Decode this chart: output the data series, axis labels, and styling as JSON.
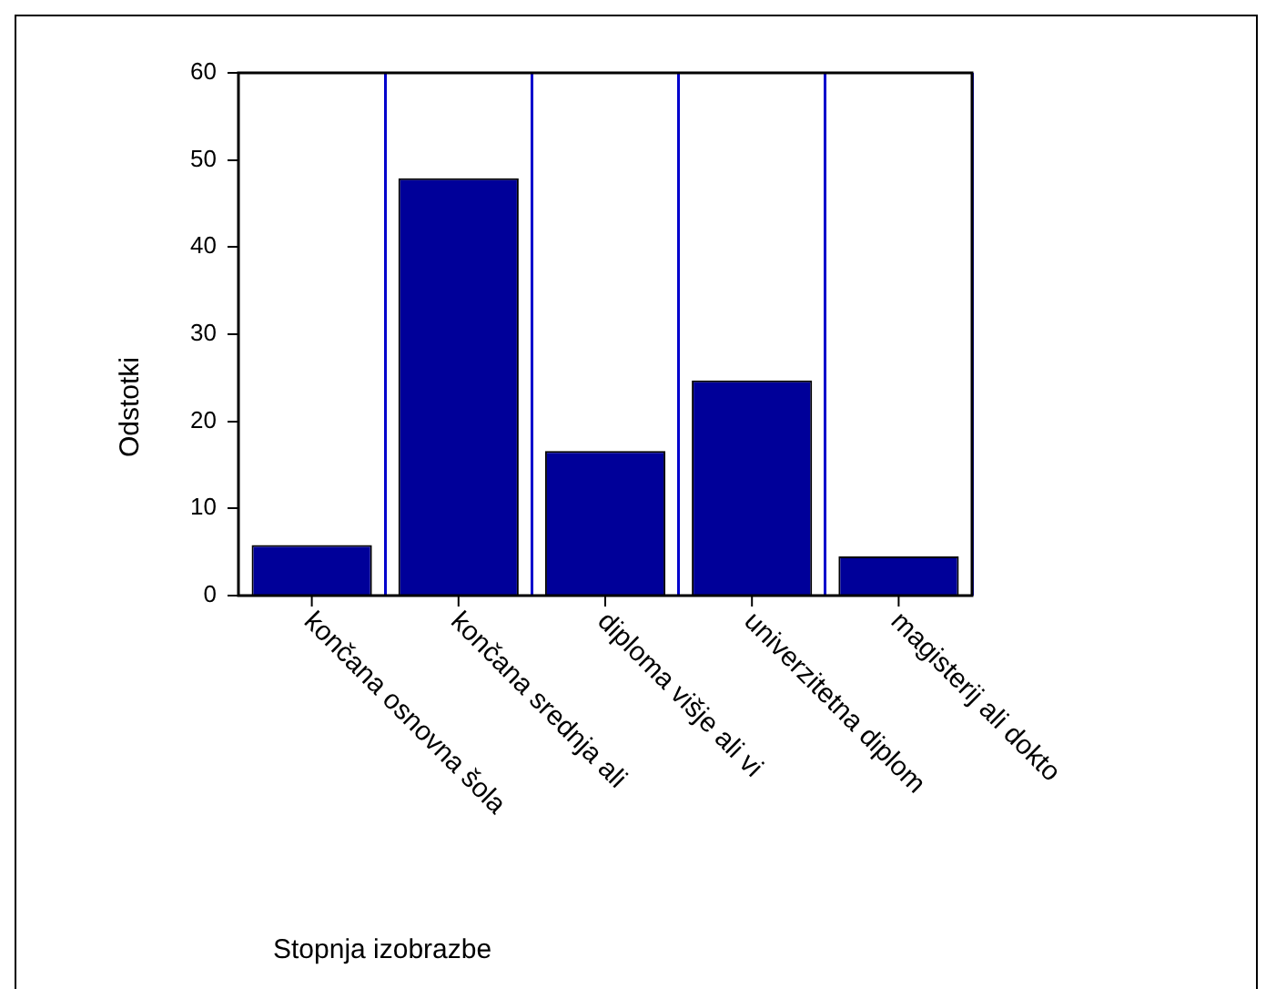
{
  "chart_data": {
    "type": "bar",
    "categories": [
      "končana osnovna šola",
      "končana srednja ali",
      "diploma višje ali vi",
      "univerzitetna diplom",
      "magisterij ali dokto"
    ],
    "values": [
      5.8,
      47.9,
      16.6,
      24.7,
      4.5
    ],
    "color": "#000099",
    "ylabel": "Odstotki",
    "xlabel": "Stopnja izobrazbe",
    "ylim": [
      0,
      60
    ],
    "yticks": [
      0,
      10,
      20,
      30,
      40,
      50,
      60
    ],
    "grid": "x",
    "legend": false
  }
}
